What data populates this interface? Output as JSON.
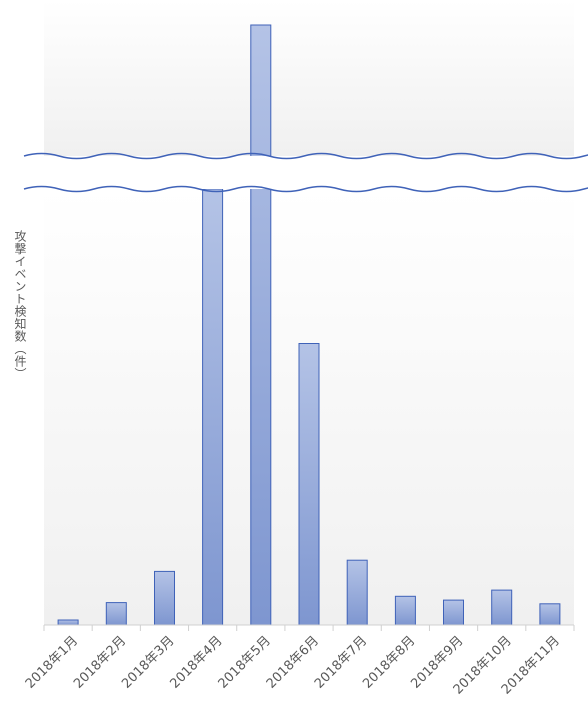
{
  "chart_data": {
    "type": "bar",
    "ylabel": "攻撃イベント検知数（件）",
    "axis_break": true,
    "categories": [
      "2018年1月",
      "2018年2月",
      "2018年3月",
      "2018年4月",
      "2018年5月",
      "2018年6月",
      "2018年7月",
      "2018年8月",
      "2018年9月",
      "2018年10月",
      "2018年11月"
    ],
    "values": [
      4,
      18,
      43,
      350,
      700,
      226,
      52,
      23,
      20,
      28,
      17
    ],
    "ylim": [
      0,
      350
    ],
    "colors": {
      "bar_top": "#b4c3e6",
      "bar_bottom": "#7e96d0",
      "bar_stroke": "#3f62b8",
      "break_line": "#3f62b8"
    }
  }
}
